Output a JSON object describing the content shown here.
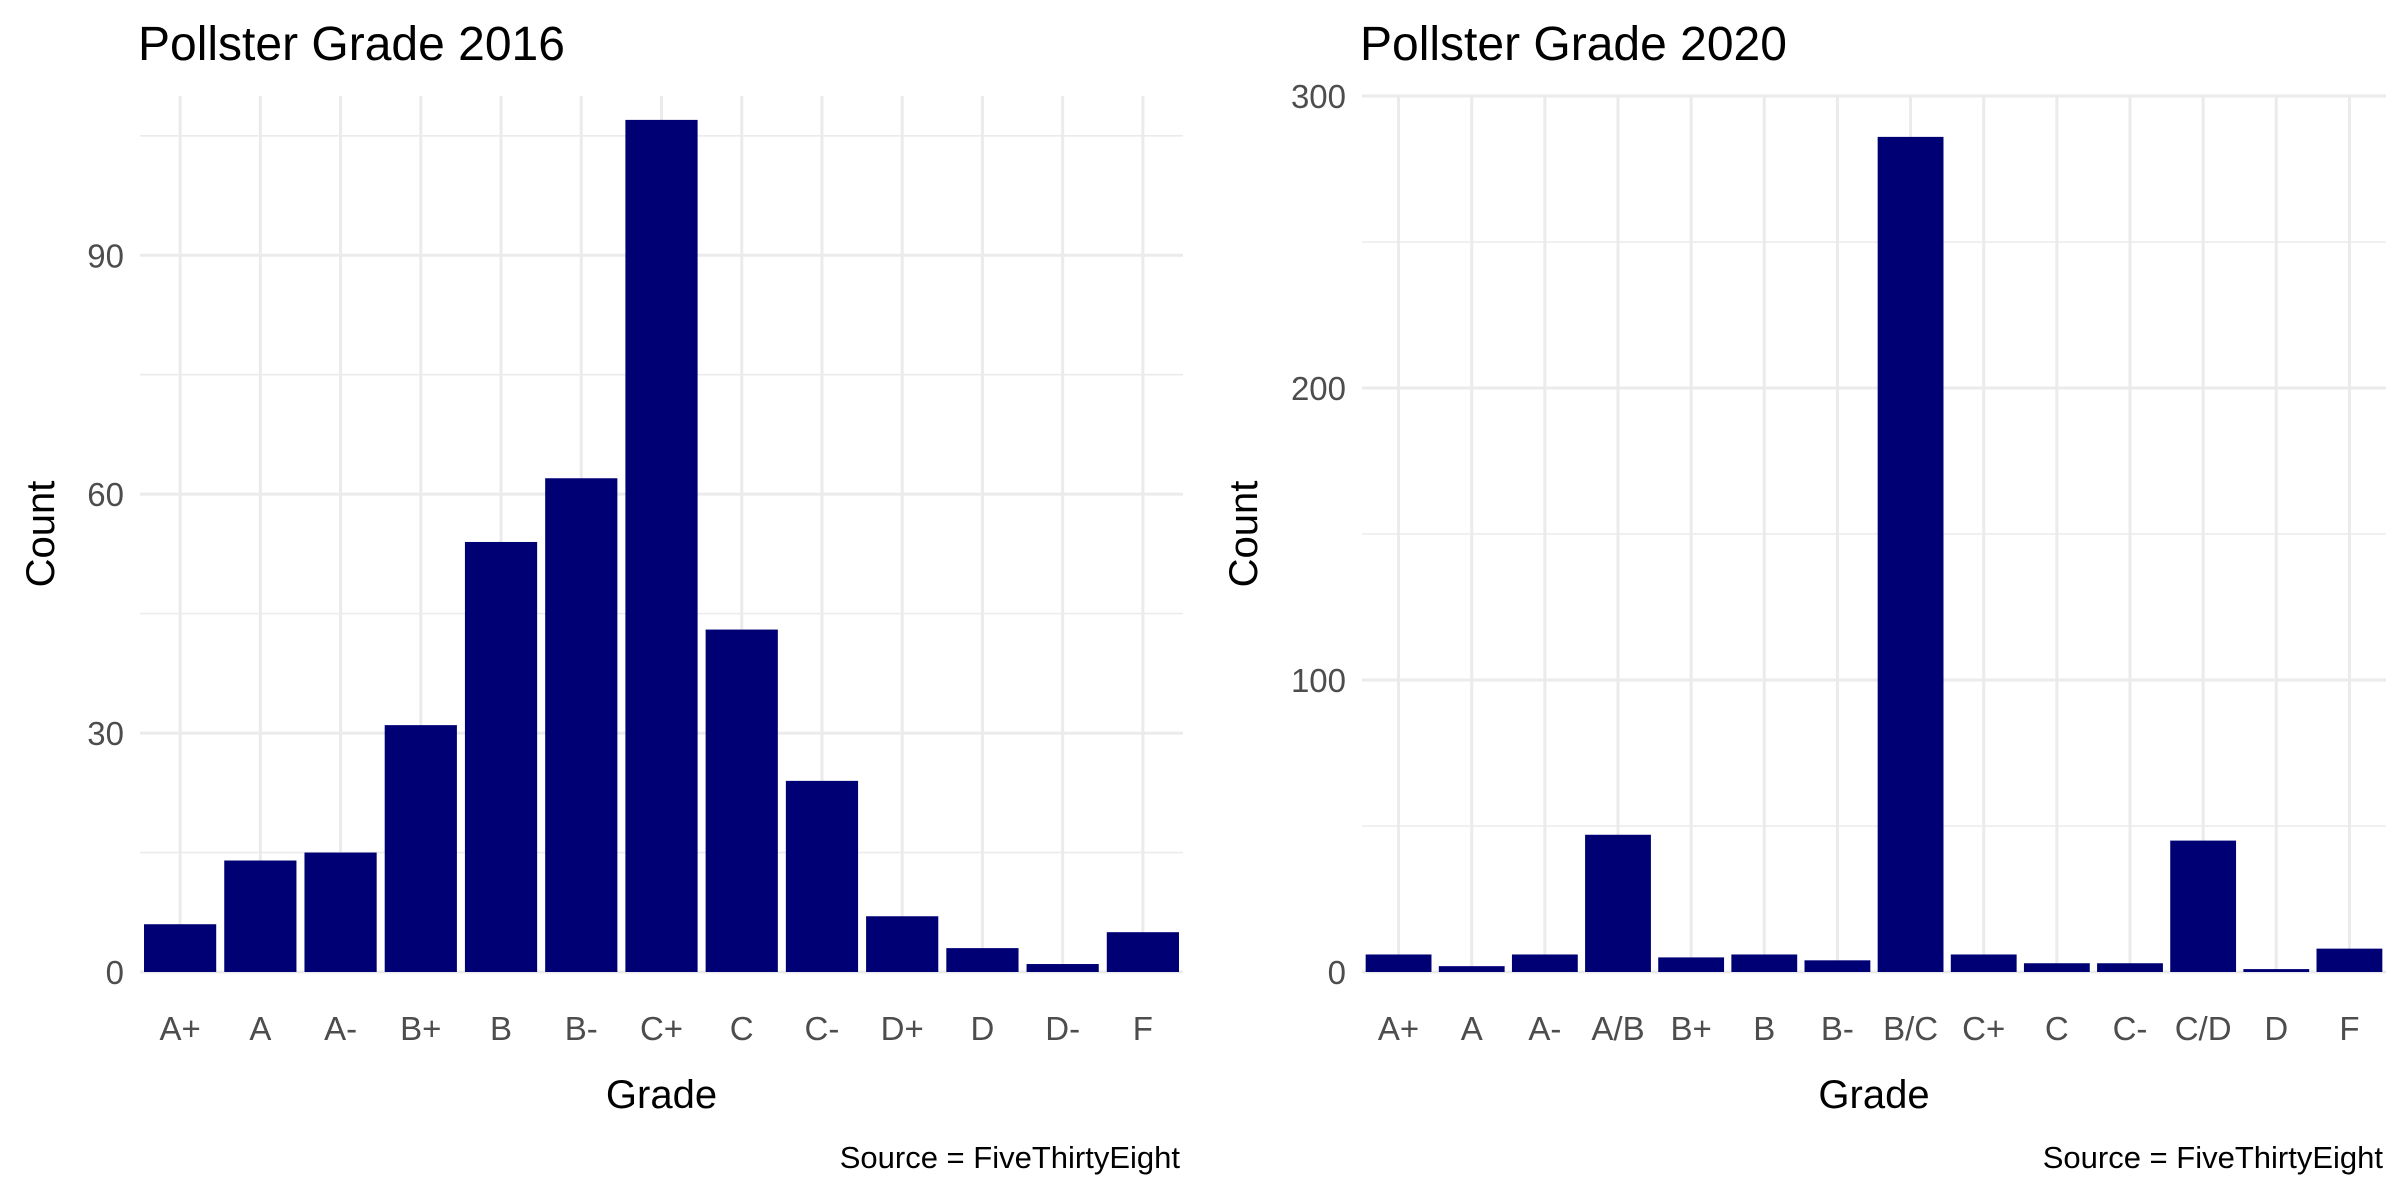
{
  "chart_data": [
    {
      "type": "bar",
      "title": "Pollster Grade 2016",
      "xlabel": "Grade",
      "ylabel": "Count",
      "caption": "Source = FiveThirtyEight",
      "categories": [
        "A+",
        "A",
        "A-",
        "B+",
        "B",
        "B-",
        "C+",
        "C",
        "C-",
        "D+",
        "D",
        "D-",
        "F"
      ],
      "values": [
        6,
        14,
        15,
        31,
        54,
        62,
        107,
        43,
        24,
        7,
        3,
        1,
        5
      ],
      "ylim": [
        0,
        110
      ],
      "yticks": [
        0,
        30,
        60,
        90
      ],
      "color": "#000075",
      "grid": true
    },
    {
      "type": "bar",
      "title": "Pollster Grade 2020",
      "xlabel": "Grade",
      "ylabel": "Count",
      "caption": "Source = FiveThirtyEight",
      "categories": [
        "A+",
        "A",
        "A-",
        "A/B",
        "B+",
        "B",
        "B-",
        "B/C",
        "C+",
        "C",
        "C-",
        "C/D",
        "D",
        "F"
      ],
      "values": [
        6,
        2,
        6,
        47,
        5,
        6,
        4,
        286,
        6,
        3,
        3,
        45,
        1,
        8
      ],
      "ylim": [
        0,
        300
      ],
      "yticks": [
        0,
        100,
        200,
        300
      ],
      "color": "#000075",
      "grid": true
    }
  ]
}
